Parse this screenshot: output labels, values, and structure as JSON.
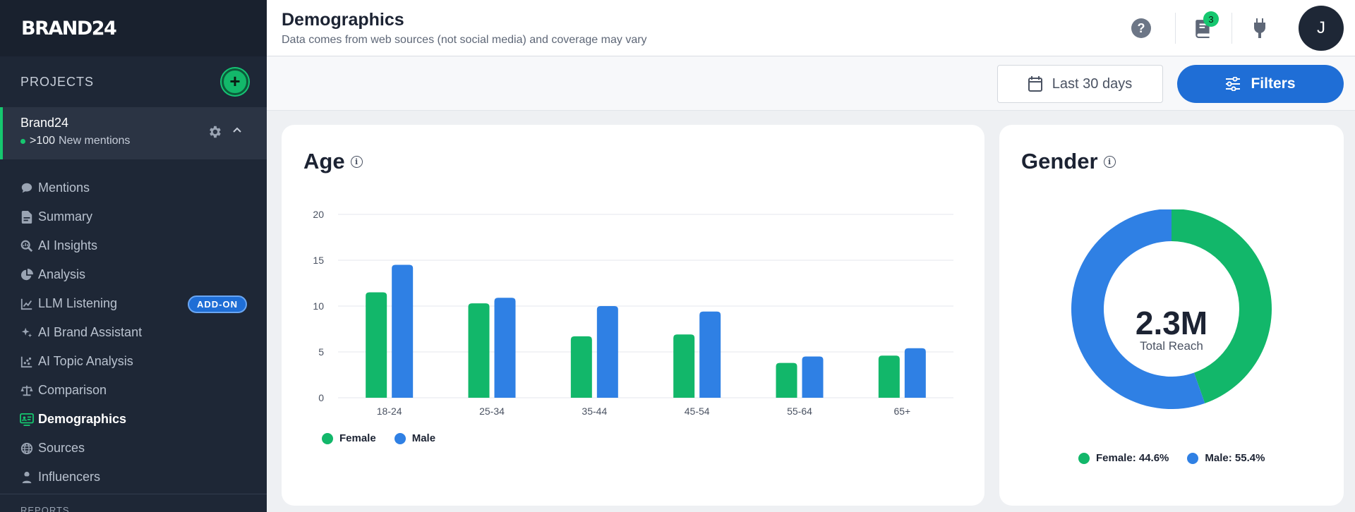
{
  "brand": {
    "logo": "BRAND24"
  },
  "sidebar": {
    "projects_title": "PROJECTS",
    "project": {
      "name": "Brand24",
      "count": ">100",
      "mentions_label": "New mentions"
    },
    "items": [
      {
        "label": "Mentions",
        "icon": "chat-bubble-icon"
      },
      {
        "label": "Summary",
        "icon": "document-icon"
      },
      {
        "label": "AI Insights",
        "icon": "magnify-insight-icon"
      },
      {
        "label": "Analysis",
        "icon": "pie-icon"
      },
      {
        "label": "LLM Listening",
        "icon": "chart-line-icon",
        "badge": "ADD-ON"
      },
      {
        "label": "AI Brand Assistant",
        "icon": "sparkle-icon"
      },
      {
        "label": "AI Topic Analysis",
        "icon": "scatter-icon"
      },
      {
        "label": "Comparison",
        "icon": "scale-icon"
      },
      {
        "label": "Demographics",
        "icon": "demographics-icon",
        "active": true
      },
      {
        "label": "Sources",
        "icon": "globe-icon"
      },
      {
        "label": "Influencers",
        "icon": "person-icon"
      }
    ],
    "reports_label": "REPORTS"
  },
  "header": {
    "title": "Demographics",
    "subtitle": "Data comes from web sources (not social media) and coverage may vary",
    "notifications_count": "3",
    "avatar_initial": "J"
  },
  "toolbar": {
    "date_range": "Last 30 days",
    "filters_label": "Filters"
  },
  "colors": {
    "female": "#12b76a",
    "male": "#2f80e4",
    "accent": "#1f6ed6",
    "sidebar_bg": "#1e2736"
  },
  "age_card": {
    "title": "Age"
  },
  "gender_card": {
    "title": "Gender",
    "center_value": "2.3M",
    "center_label": "Total Reach"
  },
  "chart_data": [
    {
      "type": "bar",
      "title": "Age",
      "categories": [
        "18-24",
        "25-34",
        "35-44",
        "45-54",
        "55-64",
        "65+"
      ],
      "series": [
        {
          "name": "Female",
          "values": [
            11.5,
            10.3,
            6.7,
            6.9,
            3.8,
            4.6
          ]
        },
        {
          "name": "Male",
          "values": [
            14.5,
            10.9,
            10.0,
            9.4,
            4.5,
            5.4
          ]
        }
      ],
      "yticks": [
        0,
        5,
        10,
        15,
        20
      ],
      "ylim": [
        0,
        20
      ],
      "grid": true,
      "legend": "bottom-left"
    },
    {
      "type": "pie",
      "title": "Gender",
      "categories": [
        "Female",
        "Male"
      ],
      "values": [
        44.6,
        55.4
      ],
      "legend_labels": [
        "Female: 44.6%",
        "Male: 55.4%"
      ],
      "legend": "bottom"
    }
  ]
}
